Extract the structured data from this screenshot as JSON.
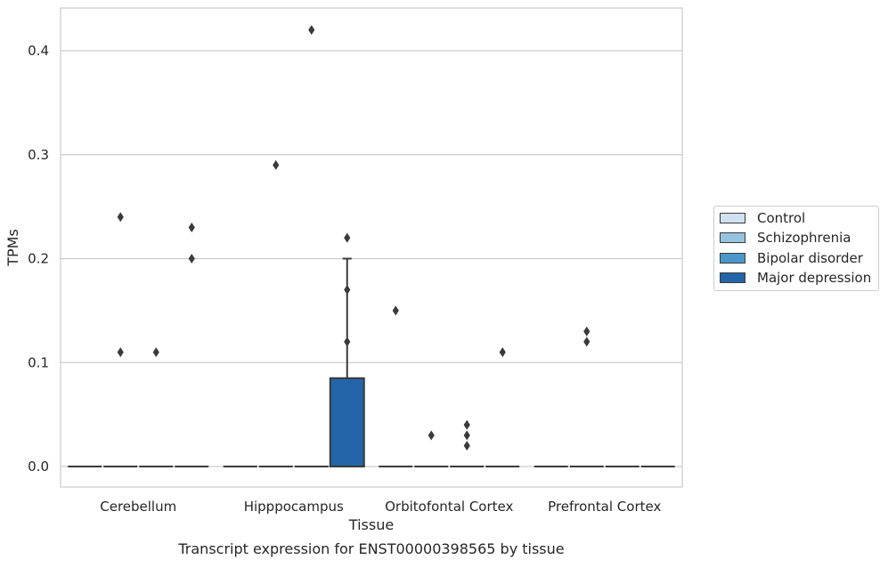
{
  "chart_data": {
    "type": "box",
    "title": "Transcript expression for ENST00000398565 by tissue",
    "xlabel": "Tissue",
    "ylabel": "TPMs",
    "ylim": [
      -0.02,
      0.44
    ],
    "yticks": [
      0.0,
      0.1,
      0.2,
      0.3,
      0.4
    ],
    "ytick_labels": [
      "0.0",
      "0.1",
      "0.2",
      "0.3",
      "0.4"
    ],
    "grid": true,
    "legend_position": "right",
    "categories": [
      "Cerebellum",
      "Hipppocampus",
      "Orbitofontal Cortex",
      "Prefrontal Cortex"
    ],
    "series": [
      {
        "name": "Control",
        "color": "#d0e1f2",
        "boxes": [
          {
            "q1": 0,
            "median": 0,
            "q3": 0,
            "whisker_low": 0,
            "whisker_high": 0,
            "outliers": []
          },
          {
            "q1": 0,
            "median": 0,
            "q3": 0,
            "whisker_low": 0,
            "whisker_high": 0,
            "outliers": []
          },
          {
            "q1": 0,
            "median": 0,
            "q3": 0,
            "whisker_low": 0,
            "whisker_high": 0,
            "outliers": [
              0.15
            ]
          },
          {
            "q1": 0,
            "median": 0,
            "q3": 0,
            "whisker_low": 0,
            "whisker_high": 0,
            "outliers": []
          }
        ]
      },
      {
        "name": "Schizophrenia",
        "color": "#94c4df",
        "boxes": [
          {
            "q1": 0,
            "median": 0,
            "q3": 0,
            "whisker_low": 0,
            "whisker_high": 0,
            "outliers": [
              0.11,
              0.24
            ]
          },
          {
            "q1": 0,
            "median": 0,
            "q3": 0,
            "whisker_low": 0,
            "whisker_high": 0,
            "outliers": [
              0.29
            ]
          },
          {
            "q1": 0,
            "median": 0,
            "q3": 0,
            "whisker_low": 0,
            "whisker_high": 0,
            "outliers": [
              0.03
            ]
          },
          {
            "q1": 0,
            "median": 0,
            "q3": 0,
            "whisker_low": 0,
            "whisker_high": 0,
            "outliers": [
              0.12,
              0.13
            ]
          }
        ]
      },
      {
        "name": "Bipolar disorder",
        "color": "#4a98c9",
        "boxes": [
          {
            "q1": 0,
            "median": 0,
            "q3": 0,
            "whisker_low": 0,
            "whisker_high": 0,
            "outliers": [
              0.11
            ]
          },
          {
            "q1": 0,
            "median": 0,
            "q3": 0,
            "whisker_low": 0,
            "whisker_high": 0,
            "outliers": [
              0.42
            ]
          },
          {
            "q1": 0,
            "median": 0,
            "q3": 0,
            "whisker_low": 0,
            "whisker_high": 0,
            "outliers": [
              0.02,
              0.03,
              0.04
            ]
          },
          {
            "q1": 0,
            "median": 0,
            "q3": 0,
            "whisker_low": 0,
            "whisker_high": 0,
            "outliers": []
          }
        ]
      },
      {
        "name": "Major depression",
        "color": "#2365a8",
        "boxes": [
          {
            "q1": 0,
            "median": 0,
            "q3": 0,
            "whisker_low": 0,
            "whisker_high": 0,
            "outliers": [
              0.2,
              0.23
            ]
          },
          {
            "q1": 0,
            "median": 0,
            "q3": 0.085,
            "whisker_low": 0,
            "whisker_high": 0.2,
            "outliers": [
              0.12,
              0.17,
              0.22
            ]
          },
          {
            "q1": 0,
            "median": 0,
            "q3": 0,
            "whisker_low": 0,
            "whisker_high": 0,
            "outliers": [
              0.11
            ]
          },
          {
            "q1": 0,
            "median": 0,
            "q3": 0,
            "whisker_low": 0,
            "whisker_high": 0,
            "outliers": []
          }
        ]
      }
    ]
  }
}
